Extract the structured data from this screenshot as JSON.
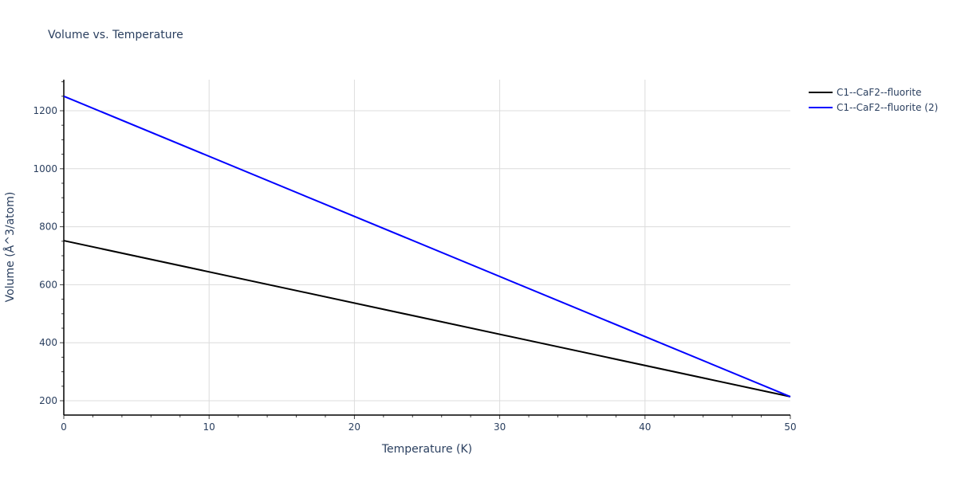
{
  "chart_data": {
    "type": "line",
    "title": "Volume vs. Temperature",
    "xlabel": "Temperature (K)",
    "ylabel": "Volume (Å^3/atom)",
    "xlim": [
      0,
      50
    ],
    "ylim": [
      155,
      1305
    ],
    "x_ticks": [
      0,
      10,
      20,
      30,
      40,
      50
    ],
    "y_ticks": [
      200,
      400,
      600,
      800,
      1000,
      1200
    ],
    "grid": true,
    "legend_position": "right-top",
    "series": [
      {
        "name": "C1--CaF2--fluorite",
        "color": "#000000",
        "x": [
          0,
          50
        ],
        "y": [
          752,
          214
        ]
      },
      {
        "name": "C1--CaF2--fluorite (2)",
        "color": "#0000ff",
        "x": [
          0,
          50
        ],
        "y": [
          1250,
          214
        ]
      }
    ]
  },
  "legend": [
    {
      "label": "C1--CaF2--fluorite",
      "color": "#000000"
    },
    {
      "label": "C1--CaF2--fluorite (2)",
      "color": "#0000ff"
    }
  ]
}
